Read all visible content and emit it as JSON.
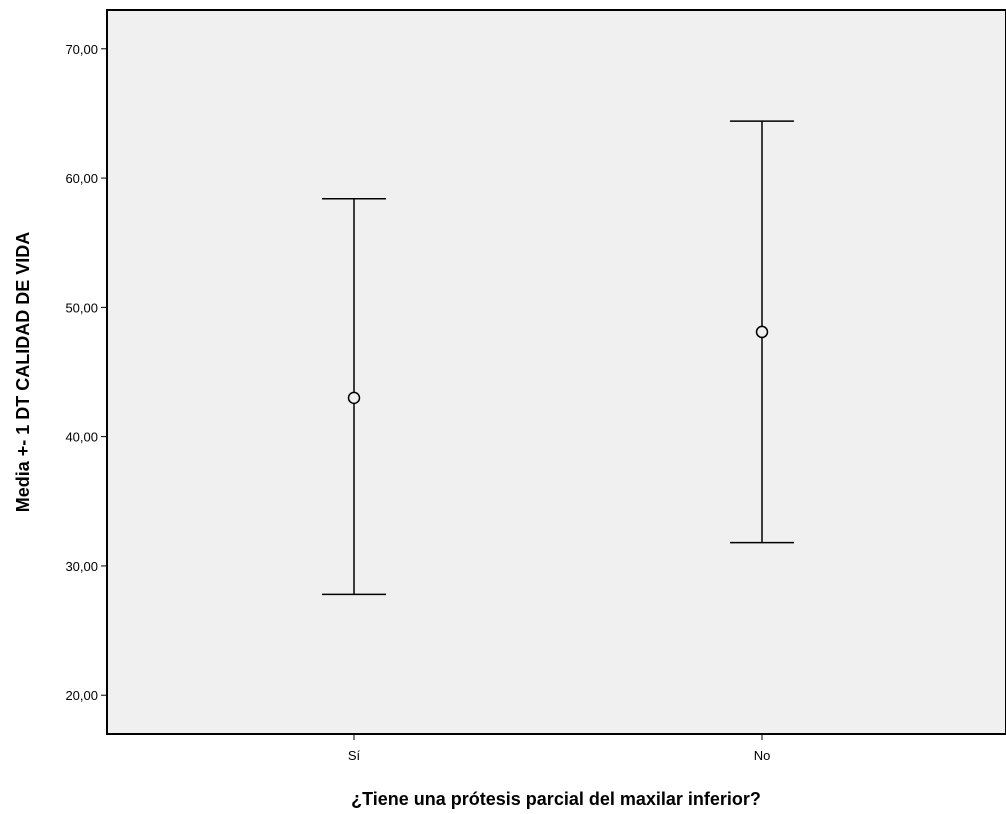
{
  "chart_data": {
    "type": "errorbar",
    "title": "",
    "xlabel": "¿Tiene una prótesis parcial del maxilar inferior?",
    "ylabel": "Media +- 1 DT CALIDAD DE VIDA",
    "categories": [
      "Sí",
      "No"
    ],
    "series": [
      {
        "mean": [
          43.0,
          48.1
        ],
        "lower": [
          27.8,
          31.8
        ],
        "upper": [
          58.4,
          64.4
        ]
      }
    ],
    "ylim": [
      17.0,
      73.0
    ],
    "yticks": [
      20,
      30,
      40,
      50,
      60,
      70
    ],
    "ytick_labels": [
      "20,00",
      "30,00",
      "40,00",
      "50,00",
      "60,00",
      "70,00"
    ],
    "grid": false,
    "legend": "none",
    "colors": {
      "plot_background": "#f0f0f0",
      "line": "#000000"
    }
  }
}
